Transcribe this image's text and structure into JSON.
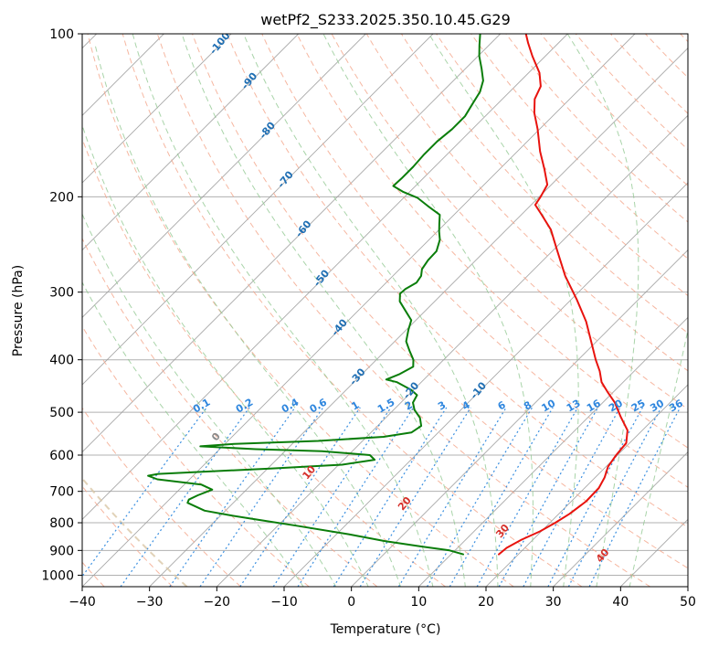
{
  "chart_data": {
    "type": "line",
    "title": "wetPf2_S233.2025.350.10.45.G29",
    "xlabel": "Temperature (°C)",
    "ylabel": "Pressure (hPa)",
    "xlim": [
      -40,
      50
    ],
    "ylim": [
      1050,
      100
    ],
    "y_scale": "log",
    "skew_degrees": 45,
    "grid": true,
    "x_ticks": [
      "−40",
      "−30",
      "−20",
      "−10",
      "0",
      "10",
      "20",
      "30",
      "40",
      "50"
    ],
    "x_tick_values": [
      -40,
      -30,
      -20,
      -10,
      0,
      10,
      20,
      30,
      40,
      50
    ],
    "y_ticks": [
      "100",
      "200",
      "300",
      "400",
      "500",
      "600",
      "700",
      "800",
      "900",
      "1000"
    ],
    "y_tick_values": [
      100,
      200,
      300,
      400,
      500,
      600,
      700,
      800,
      900,
      1000
    ],
    "colors": {
      "temperature": "#e8130e",
      "dewpoint": "#0a7d0a",
      "isotherm": "#9a9a9a",
      "dry_adiabat": "#f4a58a",
      "moist_adiabat": "#93c993",
      "mixing_ratio": "#3a8fe0",
      "mixing_label": "#2e86de",
      "adiabat_label_cold": "#1f6fb4",
      "adiabat_label_warm": "#d6302a",
      "adiabat_label_zero": "#8a8a8a",
      "lcl_curve": "#d9c7a6"
    },
    "series": [
      {
        "key": "temperature",
        "points": [
          {
            "p": 915,
            "t": 17.1
          },
          {
            "p": 890,
            "t": 17.3
          },
          {
            "p": 860,
            "t": 18.3
          },
          {
            "p": 830,
            "t": 19.8
          },
          {
            "p": 800,
            "t": 20.8
          },
          {
            "p": 770,
            "t": 21.6
          },
          {
            "p": 730,
            "t": 22.2
          },
          {
            "p": 690,
            "t": 22.1
          },
          {
            "p": 660,
            "t": 21.4
          },
          {
            "p": 630,
            "t": 20.3
          },
          {
            "p": 600,
            "t": 19.8
          },
          {
            "p": 570,
            "t": 19.5
          },
          {
            "p": 540,
            "t": 17.8
          },
          {
            "p": 510,
            "t": 14.8
          },
          {
            "p": 480,
            "t": 11.8
          },
          {
            "p": 460,
            "t": 9.3
          },
          {
            "p": 440,
            "t": 6.8
          },
          {
            "p": 420,
            "t": 4.9
          },
          {
            "p": 400,
            "t": 2.6
          },
          {
            "p": 370,
            "t": -0.8
          },
          {
            "p": 340,
            "t": -4.5
          },
          {
            "p": 310,
            "t": -9.1
          },
          {
            "p": 280,
            "t": -14.4
          },
          {
            "p": 250,
            "t": -19.6
          },
          {
            "p": 230,
            "t": -23.4
          },
          {
            "p": 215,
            "t": -27.2
          },
          {
            "p": 207,
            "t": -29.4
          },
          {
            "p": 200,
            "t": -29.8
          },
          {
            "p": 190,
            "t": -30.6
          },
          {
            "p": 178,
            "t": -33.3
          },
          {
            "p": 165,
            "t": -36.6
          },
          {
            "p": 150,
            "t": -40.3
          },
          {
            "p": 140,
            "t": -43.2
          },
          {
            "p": 132,
            "t": -45.2
          },
          {
            "p": 125,
            "t": -46.2
          },
          {
            "p": 118,
            "t": -48.4
          },
          {
            "p": 110,
            "t": -51.9
          },
          {
            "p": 104,
            "t": -54.5
          },
          {
            "p": 100,
            "t": -56.2
          }
        ]
      },
      {
        "key": "dewpoint",
        "points": [
          {
            "p": 915,
            "t": 11.8
          },
          {
            "p": 900,
            "t": 9.2
          },
          {
            "p": 885,
            "t": 4.4
          },
          {
            "p": 865,
            "t": -1.8
          },
          {
            "p": 840,
            "t": -8.2
          },
          {
            "p": 810,
            "t": -17.3
          },
          {
            "p": 790,
            "t": -23.8
          },
          {
            "p": 775,
            "t": -28.6
          },
          {
            "p": 760,
            "t": -33.1
          },
          {
            "p": 735,
            "t": -36.8
          },
          {
            "p": 725,
            "t": -37.1
          },
          {
            "p": 712,
            "t": -36.4
          },
          {
            "p": 695,
            "t": -35.1
          },
          {
            "p": 680,
            "t": -37.5
          },
          {
            "p": 665,
            "t": -44.8
          },
          {
            "p": 655,
            "t": -46.7
          },
          {
            "p": 650,
            "t": -45.5
          },
          {
            "p": 645,
            "t": -40.2
          },
          {
            "p": 635,
            "t": -29.3
          },
          {
            "p": 625,
            "t": -19.5
          },
          {
            "p": 612,
            "t": -15.4
          },
          {
            "p": 600,
            "t": -16.8
          },
          {
            "p": 590,
            "t": -24.5
          },
          {
            "p": 585,
            "t": -34.7
          },
          {
            "p": 578,
            "t": -43.3
          },
          {
            "p": 572,
            "t": -38.6
          },
          {
            "p": 565,
            "t": -26.6
          },
          {
            "p": 555,
            "t": -17.5
          },
          {
            "p": 545,
            "t": -14.0
          },
          {
            "p": 530,
            "t": -13.5
          },
          {
            "p": 512,
            "t": -14.9
          },
          {
            "p": 495,
            "t": -16.9
          },
          {
            "p": 480,
            "t": -18.2
          },
          {
            "p": 465,
            "t": -18.7
          },
          {
            "p": 455,
            "t": -20.3
          },
          {
            "p": 440,
            "t": -23.6
          },
          {
            "p": 435,
            "t": -25.6
          },
          {
            "p": 425,
            "t": -24.4
          },
          {
            "p": 412,
            "t": -23.5
          },
          {
            "p": 400,
            "t": -24.5
          },
          {
            "p": 385,
            "t": -26.4
          },
          {
            "p": 370,
            "t": -28.3
          },
          {
            "p": 352,
            "t": -29.7
          },
          {
            "p": 338,
            "t": -30.7
          },
          {
            "p": 325,
            "t": -32.9
          },
          {
            "p": 312,
            "t": -35.2
          },
          {
            "p": 302,
            "t": -36.3
          },
          {
            "p": 296,
            "t": -36.2
          },
          {
            "p": 288,
            "t": -35.5
          },
          {
            "p": 280,
            "t": -35.8
          },
          {
            "p": 272,
            "t": -36.7
          },
          {
            "p": 262,
            "t": -37.1
          },
          {
            "p": 252,
            "t": -37.2
          },
          {
            "p": 240,
            "t": -38.4
          },
          {
            "p": 232,
            "t": -39.7
          },
          {
            "p": 224,
            "t": -40.9
          },
          {
            "p": 216,
            "t": -42.1
          },
          {
            "p": 208,
            "t": -45.2
          },
          {
            "p": 201,
            "t": -47.9
          },
          {
            "p": 196,
            "t": -50.9
          },
          {
            "p": 191,
            "t": -53.3
          },
          {
            "p": 185,
            "t": -53.2
          },
          {
            "p": 176,
            "t": -53.2
          },
          {
            "p": 167,
            "t": -53.4
          },
          {
            "p": 158,
            "t": -53.4
          },
          {
            "p": 150,
            "t": -53.0
          },
          {
            "p": 142,
            "t": -53.0
          },
          {
            "p": 135,
            "t": -53.7
          },
          {
            "p": 128,
            "t": -54.4
          },
          {
            "p": 122,
            "t": -55.6
          },
          {
            "p": 116,
            "t": -57.6
          },
          {
            "p": 110,
            "t": -59.8
          },
          {
            "p": 105,
            "t": -61.4
          },
          {
            "p": 100,
            "t": -63.0
          }
        ]
      }
    ],
    "dry_adiabat_labels": [
      "-100",
      "-90",
      "-80",
      "-70",
      "-60",
      "-50",
      "-40",
      "-30",
      "-20",
      "-10",
      "0",
      "10",
      "20",
      "30",
      "40"
    ],
    "dry_adiabat_label_values": [
      -100,
      -90,
      -80,
      -70,
      -60,
      -50,
      -40,
      -30,
      -20,
      -10,
      0,
      10,
      20,
      30,
      40
    ],
    "mixing_ratio_labels": [
      "0.1",
      "0.2",
      "0.4",
      "0.6",
      "1",
      "1.5",
      "2",
      "3",
      "4",
      "6",
      "8",
      "10",
      "13",
      "16",
      "20",
      "25",
      "30",
      "36"
    ],
    "mixing_ratio_values": [
      0.1,
      0.2,
      0.4,
      0.6,
      1,
      1.5,
      2,
      3,
      4,
      6,
      8,
      10,
      13,
      16,
      20,
      25,
      30,
      36
    ],
    "mixing_label_pressure": 500
  }
}
